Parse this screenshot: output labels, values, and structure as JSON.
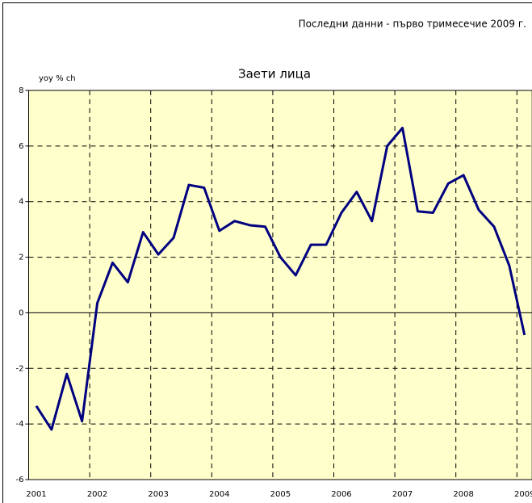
{
  "chart_data": {
    "type": "line",
    "title": "Заети лица",
    "annotation": "Последни данни - първо тримесечие 2009 г.",
    "y_axis_label": "yoy % ch",
    "categories": [
      "2001",
      null,
      null,
      null,
      "2002",
      null,
      null,
      null,
      "2003",
      null,
      null,
      null,
      "2004",
      null,
      null,
      null,
      "2005",
      null,
      null,
      null,
      "2006",
      null,
      null,
      null,
      "2007",
      null,
      null,
      null,
      "2008",
      null,
      null,
      null,
      "2009"
    ],
    "values": [
      -3.35,
      -4.2,
      -2.2,
      -3.9,
      0.35,
      1.8,
      1.1,
      2.9,
      2.1,
      2.7,
      4.6,
      4.5,
      2.95,
      3.3,
      3.15,
      3.1,
      2.0,
      1.35,
      2.45,
      2.45,
      3.6,
      4.35,
      3.3,
      6.0,
      6.65,
      3.65,
      3.6,
      4.65,
      4.95,
      3.7,
      3.1,
      1.7,
      -0.8
    ],
    "color": "#000080",
    "ylim": [
      -6,
      8
    ],
    "yticks": [
      -6,
      -4,
      -2,
      0,
      2,
      4,
      6,
      8
    ],
    "grid": true
  }
}
